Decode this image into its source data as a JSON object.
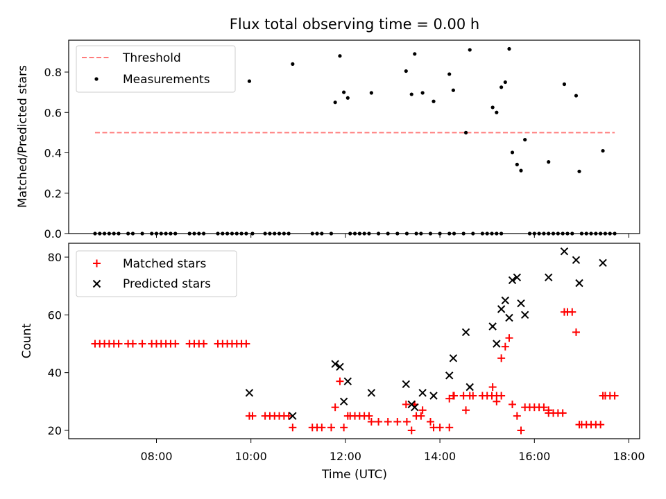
{
  "chart_data": [
    {
      "type": "scatter",
      "title": "Flux total observing time = 0.00 h",
      "xlabel": "",
      "ylabel": "Matched/Predicted stars",
      "xlim": [
        "06:12",
        "18:30"
      ],
      "ylim": [
        0,
        0.95
      ],
      "yticks": [
        0.0,
        0.2,
        0.4,
        0.6,
        0.8
      ],
      "ytick_labels": [
        "0.0",
        "0.2",
        "0.4",
        "0.6",
        "0.8"
      ],
      "grid": false,
      "legend": "top-left",
      "legend_entries": [
        "Threshold",
        "Measurements"
      ],
      "threshold": {
        "name": "Threshold",
        "value": 0.5,
        "x_start": "06:42",
        "x_end": "17:42",
        "color": "#ff7b7b",
        "style": "dashed"
      },
      "series": [
        {
          "name": "Measurements",
          "color": "#000000",
          "marker": "dot",
          "points": [
            [
              "06:42",
              0
            ],
            [
              "06:48",
              0
            ],
            [
              "06:54",
              0
            ],
            [
              "07:00",
              0
            ],
            [
              "07:06",
              0
            ],
            [
              "07:12",
              0
            ],
            [
              "07:24",
              0
            ],
            [
              "07:30",
              0
            ],
            [
              "07:42",
              0
            ],
            [
              "07:54",
              0
            ],
            [
              "08:00",
              0
            ],
            [
              "08:06",
              0
            ],
            [
              "08:12",
              0
            ],
            [
              "08:18",
              0
            ],
            [
              "08:24",
              0
            ],
            [
              "08:42",
              0
            ],
            [
              "08:48",
              0
            ],
            [
              "08:54",
              0
            ],
            [
              "09:00",
              0
            ],
            [
              "09:18",
              0
            ],
            [
              "09:24",
              0
            ],
            [
              "09:30",
              0
            ],
            [
              "09:36",
              0
            ],
            [
              "09:42",
              0
            ],
            [
              "09:48",
              0
            ],
            [
              "09:54",
              0
            ],
            [
              "09:58",
              0.755
            ],
            [
              "10:02",
              0
            ],
            [
              "10:18",
              0
            ],
            [
              "10:24",
              0
            ],
            [
              "10:30",
              0
            ],
            [
              "10:36",
              0
            ],
            [
              "10:42",
              0
            ],
            [
              "10:48",
              0
            ],
            [
              "10:53",
              0.84
            ],
            [
              "11:18",
              0
            ],
            [
              "11:24",
              0
            ],
            [
              "11:30",
              0
            ],
            [
              "11:42",
              0
            ],
            [
              "11:47",
              0.65
            ],
            [
              "11:53",
              0.88
            ],
            [
              "11:58",
              0.7
            ],
            [
              "12:03",
              0.672
            ],
            [
              "12:06",
              0
            ],
            [
              "12:12",
              0
            ],
            [
              "12:18",
              0
            ],
            [
              "12:24",
              0
            ],
            [
              "12:30",
              0
            ],
            [
              "12:33",
              0.697
            ],
            [
              "12:42",
              0
            ],
            [
              "12:54",
              0
            ],
            [
              "13:06",
              0
            ],
            [
              "13:18",
              0
            ],
            [
              "13:17",
              0.805
            ],
            [
              "13:24",
              0.69
            ],
            [
              "13:28",
              0.89
            ],
            [
              "13:38",
              0.697
            ],
            [
              "13:52",
              0.655
            ],
            [
              "13:30",
              0
            ],
            [
              "13:36",
              0
            ],
            [
              "13:48",
              0
            ],
            [
              "14:00",
              0
            ],
            [
              "14:12",
              0
            ],
            [
              "14:18",
              0
            ],
            [
              "14:30",
              0
            ],
            [
              "14:42",
              0
            ],
            [
              "14:54",
              0
            ],
            [
              "15:00",
              0
            ],
            [
              "15:06",
              0
            ],
            [
              "15:12",
              0
            ],
            [
              "15:18",
              0
            ],
            [
              "14:12",
              0.79
            ],
            [
              "14:17",
              0.71
            ],
            [
              "14:33",
              0.5
            ],
            [
              "14:38",
              0.91
            ],
            [
              "15:07",
              0.625
            ],
            [
              "15:12",
              0.6
            ],
            [
              "15:18",
              0.725
            ],
            [
              "15:23",
              0.75
            ],
            [
              "15:28",
              0.915
            ],
            [
              "15:32",
              0.402
            ],
            [
              "15:38",
              0.342
            ],
            [
              "15:43",
              0.312
            ],
            [
              "15:48",
              0.465
            ],
            [
              "15:54",
              0
            ],
            [
              "16:00",
              0
            ],
            [
              "16:06",
              0
            ],
            [
              "16:12",
              0
            ],
            [
              "16:18",
              0
            ],
            [
              "16:24",
              0
            ],
            [
              "16:30",
              0
            ],
            [
              "16:36",
              0
            ],
            [
              "16:42",
              0
            ],
            [
              "16:48",
              0
            ],
            [
              "16:18",
              0.355
            ],
            [
              "16:38",
              0.74
            ],
            [
              "16:53",
              0.683
            ],
            [
              "16:57",
              0.308
            ],
            [
              "17:00",
              0
            ],
            [
              "17:06",
              0
            ],
            [
              "17:12",
              0
            ],
            [
              "17:18",
              0
            ],
            [
              "17:24",
              0
            ],
            [
              "17:30",
              0
            ],
            [
              "17:36",
              0
            ],
            [
              "17:42",
              0
            ],
            [
              "17:27",
              0.41
            ]
          ]
        }
      ]
    },
    {
      "type": "scatter",
      "title": "",
      "xlabel": "Time (UTC)",
      "ylabel": "Count",
      "xlim": [
        "06:12",
        "18:30"
      ],
      "ylim": [
        17,
        85
      ],
      "yticks": [
        20,
        40,
        60,
        80
      ],
      "ytick_labels": [
        "20",
        "40",
        "60",
        "80"
      ],
      "xticks": [
        "08:00",
        "10:00",
        "12:00",
        "14:00",
        "16:00",
        "18:00"
      ],
      "xtick_labels": [
        "08:00",
        "10:00",
        "12:00",
        "14:00",
        "16:00",
        "18:00"
      ],
      "grid": false,
      "legend": "top-left",
      "legend_entries": [
        "Matched stars",
        "Predicted stars"
      ],
      "series": [
        {
          "name": "Matched stars",
          "color": "#ff0000",
          "marker": "plus",
          "points": [
            [
              "06:42",
              50
            ],
            [
              "06:48",
              50
            ],
            [
              "06:54",
              50
            ],
            [
              "07:00",
              50
            ],
            [
              "07:06",
              50
            ],
            [
              "07:12",
              50
            ],
            [
              "07:24",
              50
            ],
            [
              "07:30",
              50
            ],
            [
              "07:42",
              50
            ],
            [
              "07:54",
              50
            ],
            [
              "08:00",
              50
            ],
            [
              "08:06",
              50
            ],
            [
              "08:12",
              50
            ],
            [
              "08:18",
              50
            ],
            [
              "08:24",
              50
            ],
            [
              "08:42",
              50
            ],
            [
              "08:48",
              50
            ],
            [
              "08:54",
              50
            ],
            [
              "09:00",
              50
            ],
            [
              "09:18",
              50
            ],
            [
              "09:24",
              50
            ],
            [
              "09:30",
              50
            ],
            [
              "09:36",
              50
            ],
            [
              "09:42",
              50
            ],
            [
              "09:48",
              50
            ],
            [
              "09:54",
              50
            ],
            [
              "09:58",
              25
            ],
            [
              "10:02",
              25
            ],
            [
              "10:18",
              25
            ],
            [
              "10:24",
              25
            ],
            [
              "10:30",
              25
            ],
            [
              "10:36",
              25
            ],
            [
              "10:42",
              25
            ],
            [
              "10:48",
              25
            ],
            [
              "10:53",
              21
            ],
            [
              "11:18",
              21
            ],
            [
              "11:24",
              21
            ],
            [
              "11:30",
              21
            ],
            [
              "11:42",
              21
            ],
            [
              "11:47",
              28
            ],
            [
              "11:53",
              37
            ],
            [
              "11:58",
              21
            ],
            [
              "12:03",
              25
            ],
            [
              "12:06",
              25
            ],
            [
              "12:12",
              25
            ],
            [
              "12:18",
              25
            ],
            [
              "12:24",
              25
            ],
            [
              "12:30",
              25
            ],
            [
              "12:33",
              23
            ],
            [
              "12:42",
              23
            ],
            [
              "12:54",
              23
            ],
            [
              "13:06",
              23
            ],
            [
              "13:18",
              23
            ],
            [
              "13:17",
              29
            ],
            [
              "13:24",
              20
            ],
            [
              "13:28",
              29
            ],
            [
              "13:38",
              27
            ],
            [
              "13:52",
              21
            ],
            [
              "13:30",
              25
            ],
            [
              "13:36",
              25
            ],
            [
              "13:48",
              23
            ],
            [
              "14:00",
              21
            ],
            [
              "14:12",
              21
            ],
            [
              "14:18",
              32
            ],
            [
              "14:30",
              32
            ],
            [
              "14:42",
              32
            ],
            [
              "14:54",
              32
            ],
            [
              "15:00",
              32
            ],
            [
              "15:06",
              32
            ],
            [
              "15:12",
              32
            ],
            [
              "15:18",
              32
            ],
            [
              "14:12",
              31
            ],
            [
              "14:17",
              32
            ],
            [
              "14:33",
              27
            ],
            [
              "14:38",
              32
            ],
            [
              "15:07",
              35
            ],
            [
              "15:12",
              30
            ],
            [
              "15:18",
              45
            ],
            [
              "15:23",
              49
            ],
            [
              "15:28",
              52
            ],
            [
              "15:32",
              29
            ],
            [
              "15:38",
              25
            ],
            [
              "15:43",
              20
            ],
            [
              "15:48",
              28
            ],
            [
              "15:54",
              28
            ],
            [
              "16:00",
              28
            ],
            [
              "16:06",
              28
            ],
            [
              "16:12",
              28
            ],
            [
              "16:18",
              26
            ],
            [
              "16:24",
              26
            ],
            [
              "16:30",
              26
            ],
            [
              "16:36",
              26
            ],
            [
              "16:42",
              61
            ],
            [
              "16:48",
              61
            ],
            [
              "16:18",
              27
            ],
            [
              "16:38",
              61
            ],
            [
              "16:53",
              54
            ],
            [
              "16:57",
              22
            ],
            [
              "17:00",
              22
            ],
            [
              "17:06",
              22
            ],
            [
              "17:12",
              22
            ],
            [
              "17:18",
              22
            ],
            [
              "17:24",
              22
            ],
            [
              "17:30",
              32
            ],
            [
              "17:36",
              32
            ],
            [
              "17:42",
              32
            ],
            [
              "17:27",
              32
            ]
          ]
        },
        {
          "name": "Predicted stars",
          "color": "#000000",
          "marker": "x",
          "points": [
            [
              "09:58",
              33
            ],
            [
              "10:53",
              25
            ],
            [
              "11:47",
              43
            ],
            [
              "11:53",
              42
            ],
            [
              "11:58",
              30
            ],
            [
              "12:03",
              37
            ],
            [
              "12:33",
              33
            ],
            [
              "13:17",
              36
            ],
            [
              "13:24",
              29
            ],
            [
              "13:28",
              28
            ],
            [
              "13:38",
              33
            ],
            [
              "13:52",
              32
            ],
            [
              "14:12",
              39
            ],
            [
              "14:17",
              45
            ],
            [
              "14:33",
              54
            ],
            [
              "14:38",
              35
            ],
            [
              "15:07",
              56
            ],
            [
              "15:12",
              50
            ],
            [
              "15:18",
              62
            ],
            [
              "15:23",
              65
            ],
            [
              "15:28",
              59
            ],
            [
              "15:32",
              72
            ],
            [
              "15:38",
              73
            ],
            [
              "15:43",
              64
            ],
            [
              "15:48",
              60
            ],
            [
              "16:18",
              73
            ],
            [
              "16:38",
              82
            ],
            [
              "16:53",
              79
            ],
            [
              "16:57",
              71
            ],
            [
              "17:27",
              78
            ]
          ]
        }
      ]
    }
  ]
}
